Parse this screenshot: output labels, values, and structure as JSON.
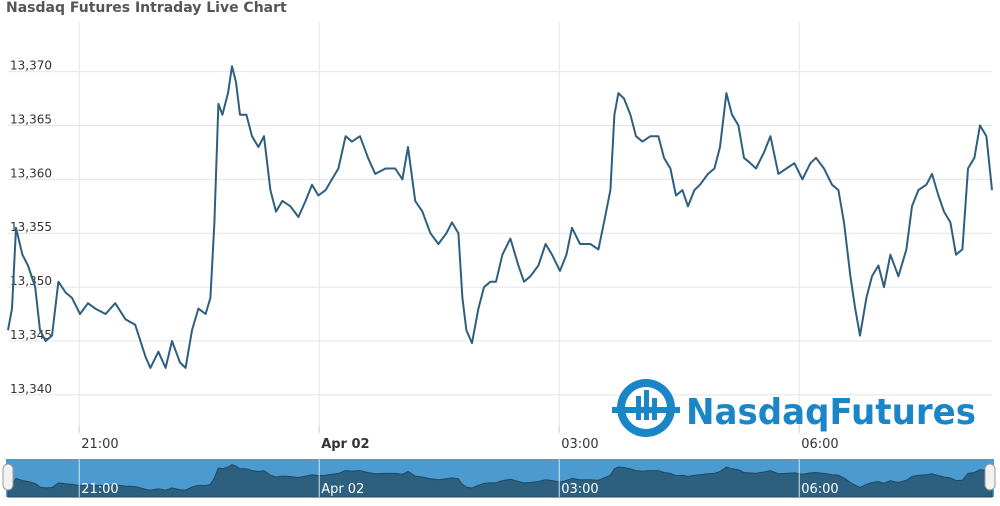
{
  "chart_data": {
    "type": "line",
    "title": "Nasdaq Futures Intraday Live Chart",
    "watermark": "NasdaqFutures",
    "x": [
      20.11,
      20.16,
      20.21,
      20.29,
      20.36,
      20.45,
      20.51,
      20.58,
      20.66,
      20.74,
      20.83,
      20.91,
      21.01,
      21.11,
      21.2,
      21.33,
      21.45,
      21.58,
      21.7,
      21.83,
      21.89,
      21.99,
      22.08,
      22.16,
      22.26,
      22.33,
      22.41,
      22.49,
      22.58,
      22.64,
      22.69,
      22.74,
      22.79,
      22.86,
      22.91,
      22.96,
      23.01,
      23.09,
      23.16,
      23.24,
      23.31,
      23.39,
      23.46,
      23.54,
      23.64,
      23.74,
      23.83,
      23.91,
      23.99,
      24.08,
      24.16,
      24.24,
      24.33,
      24.41,
      24.51,
      24.61,
      24.7,
      24.83,
      24.95,
      25.04,
      25.11,
      25.2,
      25.29,
      25.39,
      25.49,
      25.59,
      25.66,
      25.74,
      25.79,
      25.84,
      25.91,
      25.99,
      26.06,
      26.14,
      26.21,
      26.29,
      26.39,
      26.49,
      26.56,
      26.64,
      26.74,
      26.83,
      26.91,
      27.01,
      27.09,
      27.16,
      27.26,
      27.39,
      27.49,
      27.56,
      27.64,
      27.69,
      27.74,
      27.81,
      27.89,
      27.96,
      28.04,
      28.14,
      28.24,
      28.31,
      28.39,
      28.46,
      28.54,
      28.61,
      28.69,
      28.76,
      28.86,
      28.94,
      29.01,
      29.09,
      29.16,
      29.24,
      29.31,
      29.39,
      29.46,
      29.56,
      29.64,
      29.74,
      29.84,
      29.94,
      30.04,
      30.14,
      30.21,
      30.31,
      30.41,
      30.49,
      30.56,
      30.64,
      30.7,
      30.76,
      30.84,
      30.91,
      30.99,
      31.06,
      31.14,
      31.24,
      31.34,
      31.41,
      31.49,
      31.59,
      31.66,
      31.74,
      31.81,
      31.89,
      31.96,
      32.04,
      32.11,
      32.19,
      32.26,
      32.34,
      32.41
    ],
    "series": [
      {
        "name": "Nasdaq Futures",
        "color": "#2f5f80",
        "values": [
          13346,
          13348,
          13355.5,
          13353,
          13352,
          13350,
          13346,
          13345,
          13345.5,
          13350.5,
          13349.5,
          13349,
          13347.5,
          13348.5,
          13348,
          13347.5,
          13348.5,
          13347,
          13346.5,
          13343.5,
          13342.5,
          13344,
          13342.5,
          13345,
          13343,
          13342.5,
          13346,
          13348,
          13347.5,
          13349,
          13356,
          13367,
          13366,
          13368,
          13370.5,
          13369,
          13366,
          13366,
          13364,
          13363,
          13364,
          13359,
          13357,
          13358,
          13357.5,
          13356.5,
          13358,
          13359.5,
          13358.5,
          13359,
          13360,
          13361,
          13364,
          13363.5,
          13364,
          13362,
          13360.5,
          13361,
          13361,
          13360,
          13363,
          13358,
          13357,
          13355,
          13354,
          13355,
          13356,
          13355,
          13349,
          13346,
          13344.8,
          13348,
          13350,
          13350.5,
          13350.5,
          13353,
          13354.5,
          13352,
          13350.5,
          13351,
          13352,
          13354,
          13353,
          13351.5,
          13353,
          13355.5,
          13354,
          13354,
          13353.5,
          13356,
          13359,
          13366,
          13368,
          13367.5,
          13366,
          13364,
          13363.5,
          13364,
          13364,
          13362,
          13361,
          13358.5,
          13359,
          13357.5,
          13359,
          13359.5,
          13360.5,
          13361,
          13363,
          13368,
          13366,
          13365,
          13362,
          13361.5,
          13361,
          13362.5,
          13364,
          13360.5,
          13361,
          13361.5,
          13360,
          13361.5,
          13362,
          13361,
          13359.5,
          13359,
          13356,
          13351,
          13348,
          13345.5,
          13349,
          13351,
          13352,
          13350,
          13353,
          13351,
          13353.5,
          13357.5,
          13359,
          13359.5,
          13360.5,
          13358.5,
          13357,
          13356,
          13353,
          13353.5,
          13361,
          13362,
          13365,
          13364,
          13359
        ]
      }
    ],
    "xlim": [
      20.11,
      32.41
    ],
    "xticks": [
      {
        "value": 21,
        "label": "21:00"
      },
      {
        "value": 24,
        "label": "Apr 02"
      },
      {
        "value": 27,
        "label": "03:00"
      },
      {
        "value": 30,
        "label": "06:00"
      }
    ],
    "ylim": [
      13337.2,
      13374.6
    ],
    "yticks": [
      {
        "value": 13340,
        "label": "13,340"
      },
      {
        "value": 13345,
        "label": "13,345"
      },
      {
        "value": 13350,
        "label": "13,350"
      },
      {
        "value": 13355,
        "label": "13,355"
      },
      {
        "value": 13360,
        "label": "13,360"
      },
      {
        "value": 13365,
        "label": "13,365"
      },
      {
        "value": 13370,
        "label": "13,370"
      }
    ],
    "grid": true,
    "navigator": true
  }
}
